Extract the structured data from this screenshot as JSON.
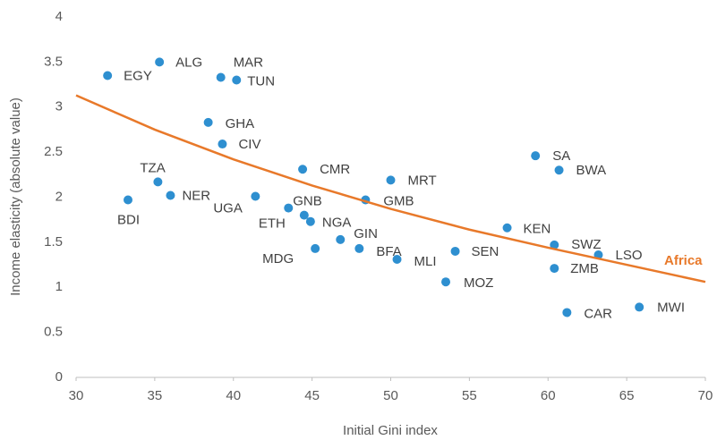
{
  "chart_data": {
    "type": "scatter",
    "x_label": "Initial Gini index",
    "y_label": "Income elasticity (absolute value)",
    "xlim": [
      30,
      70
    ],
    "xticks": [
      30,
      35,
      40,
      45,
      50,
      55,
      60,
      65,
      70
    ],
    "ylim": [
      0,
      4
    ],
    "yticks": [
      0,
      0.5,
      1,
      1.5,
      2,
      2.5,
      3,
      3.5,
      4
    ],
    "series": [
      {
        "color": "#2e8fd0",
        "x": [
          32.0,
          35.3,
          39.2,
          40.2,
          38.4,
          39.3,
          35.2,
          33.3,
          36.0,
          41.4,
          44.4,
          43.5,
          44.5,
          44.9,
          50.0,
          48.4,
          46.8,
          45.2,
          48.0,
          50.4,
          54.1,
          53.5,
          57.4,
          59.2,
          60.7,
          60.4,
          63.2,
          60.4,
          61.2,
          65.8
        ],
        "values": [
          3.35,
          3.5,
          3.33,
          3.3,
          2.83,
          2.59,
          2.17,
          1.97,
          2.02,
          2.01,
          2.31,
          1.88,
          1.8,
          1.73,
          2.19,
          1.97,
          1.53,
          1.43,
          1.43,
          1.31,
          1.4,
          1.06,
          1.66,
          2.46,
          2.3,
          1.47,
          1.36,
          1.21,
          0.72,
          0.78
        ],
        "labels": [
          "EGY",
          "ALG",
          "MAR",
          "TUN",
          "GHA",
          "CIV",
          "TZA",
          "BDI",
          "NER",
          "UGA",
          "CMR",
          "GNB",
          "ETH",
          "NGA",
          "MRT",
          "GMB",
          "GIN",
          "MDG",
          "BFA",
          "MLI",
          "SEN",
          "MOZ",
          "KEN",
          "SA",
          "BWA",
          "SWZ",
          "LSO",
          "ZMB",
          "CAR",
          "MWI"
        ]
      },
      {
        "name": "Africa",
        "color": "#e8792a",
        "line": true,
        "x": [
          30,
          35,
          40,
          45,
          50,
          55,
          60,
          65,
          70
        ],
        "values": [
          3.13,
          2.75,
          2.42,
          2.13,
          1.87,
          1.64,
          1.44,
          1.25,
          1.06
        ]
      }
    ]
  }
}
